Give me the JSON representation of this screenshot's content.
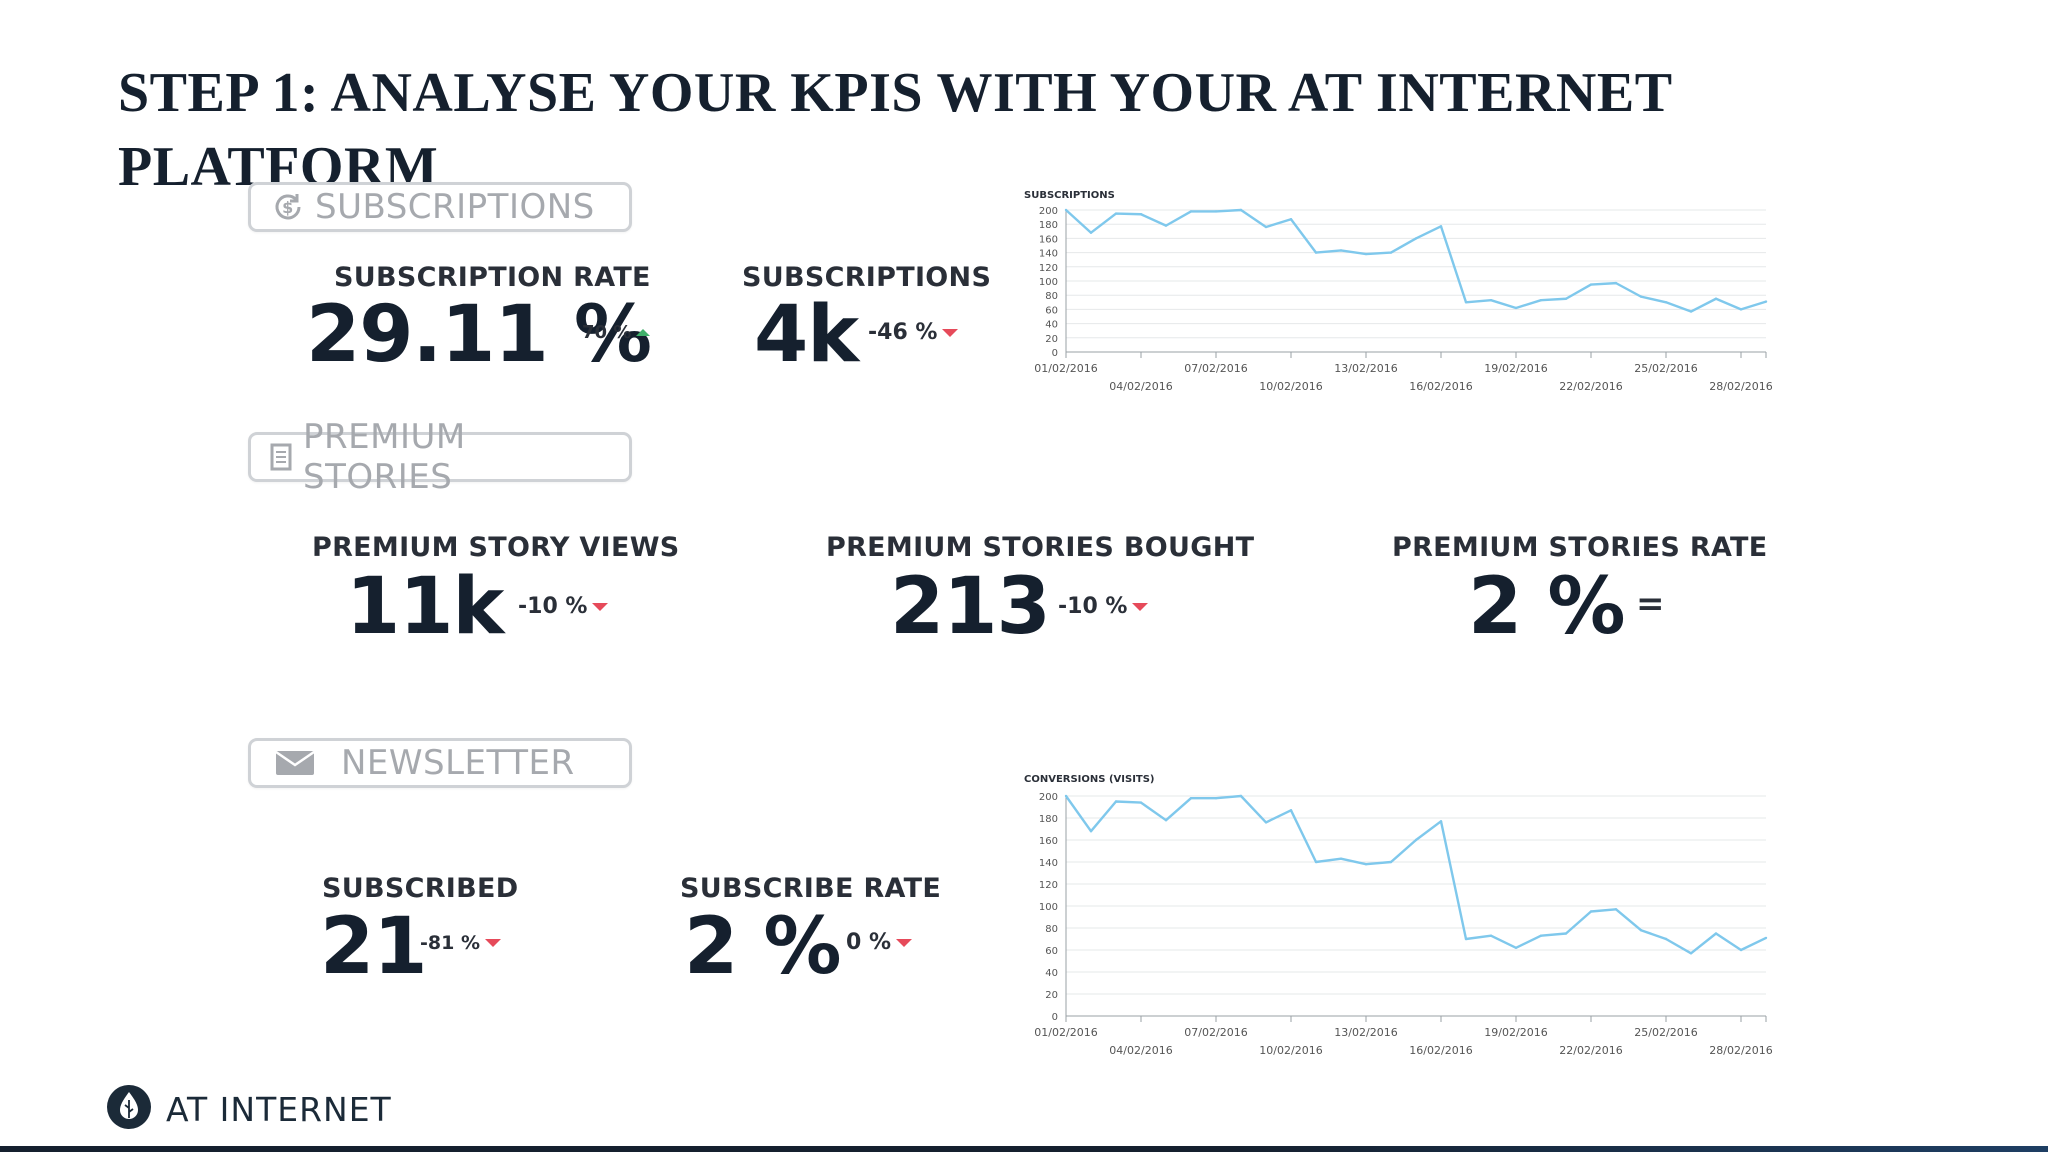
{
  "slide": {
    "title": "STEP 1: ANALYSE YOUR KPIS WITH YOUR AT INTERNET PLATFORM"
  },
  "sections": {
    "subscriptions": {
      "label": "SUBSCRIPTIONS",
      "icon": "refresh-dollar-icon"
    },
    "premium": {
      "label": "PREMIUM STORIES",
      "icon": "document-icon"
    },
    "newsletter": {
      "label": "NEWSLETTER",
      "icon": "envelope-icon"
    }
  },
  "kpis": {
    "subscription_rate": {
      "label": "SUBSCRIPTION RATE",
      "value": "29.11 %",
      "delta": "70 %",
      "trend": "up"
    },
    "subscriptions": {
      "label": "SUBSCRIPTIONS",
      "value": "4k",
      "delta": "-46 %",
      "trend": "down"
    },
    "premium_views": {
      "label": "PREMIUM STORY VIEWS",
      "value": "11k",
      "delta": "-10 %",
      "trend": "down"
    },
    "premium_bought": {
      "label": "PREMIUM STORIES BOUGHT",
      "value": "213",
      "delta": "-10 %",
      "trend": "down"
    },
    "premium_rate": {
      "label": "PREMIUM STORIES RATE",
      "value": "2 %",
      "delta": "=",
      "trend": "flat"
    },
    "subscribed": {
      "label": "SUBSCRIBED",
      "value": "21",
      "delta": "-81 %",
      "trend": "down"
    },
    "subscribe_rate": {
      "label": "SUBSCRIBE RATE",
      "value": "2 %",
      "delta": "0 %",
      "trend": "down"
    }
  },
  "colors": {
    "title": "#15202e",
    "line": "#7fc8ec",
    "down": "#e64a5a",
    "up": "#3fb06a",
    "pill_border": "#cfd2d6",
    "pill_text": "#a6a9ae"
  },
  "footer": {
    "brand": "AT INTERNET",
    "logo_icon": "leaf-drop-icon"
  },
  "chart_data": [
    {
      "type": "line",
      "title": "SUBSCRIPTIONS",
      "xlabel": "",
      "ylabel": "",
      "ylim": [
        0,
        200
      ],
      "yticks": [
        0,
        20,
        40,
        60,
        80,
        100,
        120,
        140,
        160,
        180,
        200
      ],
      "grid": true,
      "x": [
        "01/02/2016",
        "02/02/2016",
        "03/02/2016",
        "04/02/2016",
        "05/02/2016",
        "06/02/2016",
        "07/02/2016",
        "08/02/2016",
        "09/02/2016",
        "10/02/2016",
        "11/02/2016",
        "12/02/2016",
        "13/02/2016",
        "14/02/2016",
        "15/02/2016",
        "16/02/2016",
        "17/02/2016",
        "18/02/2016",
        "19/02/2016",
        "20/02/2016",
        "21/02/2016",
        "22/02/2016",
        "23/02/2016",
        "24/02/2016",
        "25/02/2016",
        "26/02/2016",
        "27/02/2016",
        "28/02/2016",
        "29/02/2016"
      ],
      "xtick_labels_top": [
        "01/02/2016",
        "07/02/2016",
        "13/02/2016",
        "19/02/2016",
        "25/02/2016"
      ],
      "xtick_labels_bottom": [
        "04/02/2016",
        "10/02/2016",
        "16/02/2016",
        "22/02/2016",
        "28/02/2016"
      ],
      "series": [
        {
          "values": [
            200,
            168,
            195,
            194,
            178,
            198,
            198,
            200,
            176,
            187,
            140,
            143,
            138,
            140,
            160,
            177,
            70,
            73,
            62,
            73,
            75,
            95,
            97,
            78,
            70,
            57,
            75,
            60,
            71
          ]
        }
      ]
    },
    {
      "type": "line",
      "title": "CONVERSIONS (VISITS)",
      "xlabel": "",
      "ylabel": "",
      "ylim": [
        0,
        200
      ],
      "yticks": [
        0,
        20,
        40,
        60,
        80,
        100,
        120,
        140,
        160,
        180,
        200
      ],
      "grid": true,
      "x": [
        "01/02/2016",
        "02/02/2016",
        "03/02/2016",
        "04/02/2016",
        "05/02/2016",
        "06/02/2016",
        "07/02/2016",
        "08/02/2016",
        "09/02/2016",
        "10/02/2016",
        "11/02/2016",
        "12/02/2016",
        "13/02/2016",
        "14/02/2016",
        "15/02/2016",
        "16/02/2016",
        "17/02/2016",
        "18/02/2016",
        "19/02/2016",
        "20/02/2016",
        "21/02/2016",
        "22/02/2016",
        "23/02/2016",
        "24/02/2016",
        "25/02/2016",
        "26/02/2016",
        "27/02/2016",
        "28/02/2016",
        "29/02/2016"
      ],
      "xtick_labels_top": [
        "01/02/2016",
        "07/02/2016",
        "13/02/2016",
        "19/02/2016",
        "25/02/2016"
      ],
      "xtick_labels_bottom": [
        "04/02/2016",
        "10/02/2016",
        "16/02/2016",
        "22/02/2016",
        "28/02/2016"
      ],
      "series": [
        {
          "values": [
            200,
            168,
            195,
            194,
            178,
            198,
            198,
            200,
            176,
            187,
            140,
            143,
            138,
            140,
            160,
            177,
            70,
            73,
            62,
            73,
            75,
            95,
            97,
            78,
            70,
            57,
            75,
            60,
            71
          ]
        }
      ]
    }
  ]
}
